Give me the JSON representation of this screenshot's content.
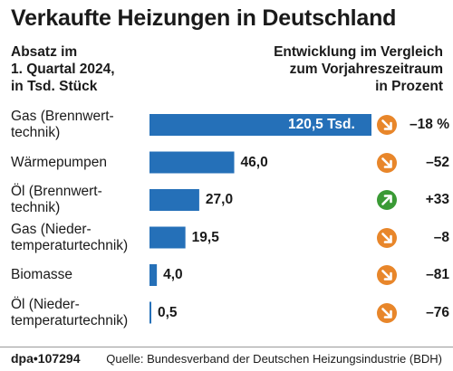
{
  "title": "Verkaufte Heizungen in Deutschland",
  "subtitle_left": [
    "Absatz im",
    "1. Quartal 2024,",
    "in Tsd. Stück"
  ],
  "subtitle_right": [
    "Entwicklung im Vergleich",
    "zum Vorjahreszeitraum",
    "in Prozent"
  ],
  "colors": {
    "bar": "#2570b8",
    "arrow_down": "#e8862a",
    "arrow_up": "#3a9a35",
    "rule": "#9a9a9a"
  },
  "chart_data": {
    "type": "bar",
    "orientation": "horizontal",
    "categories": [
      [
        "Gas (Brennwert-",
        "technik)"
      ],
      [
        "Wärmepumpen"
      ],
      [
        "Öl (Brennwert-",
        "technik)"
      ],
      [
        "Gas (Nieder-",
        "temperaturtechnik)"
      ],
      [
        "Biomasse"
      ],
      [
        "Öl (Nieder-",
        "temperaturtechnik)"
      ]
    ],
    "values": [
      120.5,
      46.0,
      27.0,
      19.5,
      4.0,
      0.5
    ],
    "value_labels": [
      "120,5 Tsd.",
      "46,0",
      "27,0",
      "19,5",
      "4,0",
      "0,5"
    ],
    "change_percent": [
      -18,
      -52,
      33,
      -8,
      -81,
      -76
    ],
    "change_labels": [
      "–18 %",
      "–52",
      "+33",
      "–8",
      "–81",
      "–76"
    ],
    "change_icons": [
      "arrow-down-right-icon",
      "arrow-down-right-icon",
      "arrow-up-right-icon",
      "arrow-down-right-icon",
      "arrow-down-right-icon",
      "arrow-down-right-icon"
    ],
    "xlim": [
      0,
      120.5
    ],
    "grid": false,
    "legend": "none"
  },
  "footer": {
    "id": "dpa•107294",
    "source": "Quelle: Bundesverband der Deutschen Heizungsindustrie (BDH)"
  }
}
